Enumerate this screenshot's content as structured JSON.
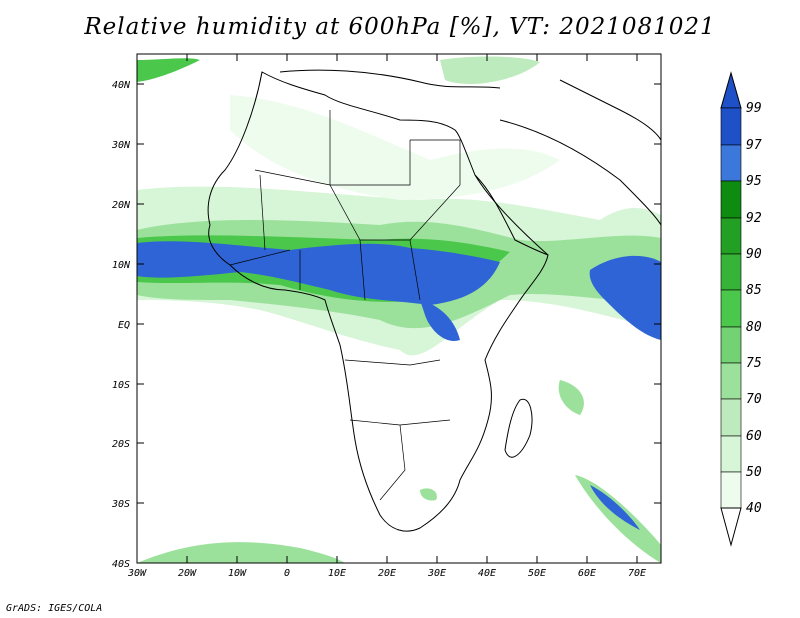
{
  "title": "Relative humidity at 600hPa [%], VT: 2021081021",
  "credit": "GrADS: IGES/COLA",
  "map": {
    "lat_labels": [
      "40N",
      "30N",
      "20N",
      "10N",
      "EQ",
      "10S",
      "20S",
      "30S",
      "40S"
    ],
    "lon_labels": [
      "30W",
      "20W",
      "10W",
      "0",
      "10E",
      "20E",
      "30E",
      "40E",
      "50E",
      "60E",
      "70E"
    ],
    "extent": {
      "lon_min": -30,
      "lon_max": 75,
      "lat_min": -40,
      "lat_max": 43
    }
  },
  "colorbar": {
    "levels": [
      "99",
      "97",
      "95",
      "92",
      "90",
      "85",
      "80",
      "75",
      "70",
      "60",
      "50",
      "40"
    ],
    "colors": [
      "#1e50c8",
      "#3c78dc",
      "#5aa0f0",
      "#0f8c0f",
      "#23a023",
      "#37b437",
      "#4bc84b",
      "#73d273",
      "#9be19b",
      "#bdebbd",
      "#d7f5d7",
      "#eefcee",
      "#ffffff"
    ]
  }
}
